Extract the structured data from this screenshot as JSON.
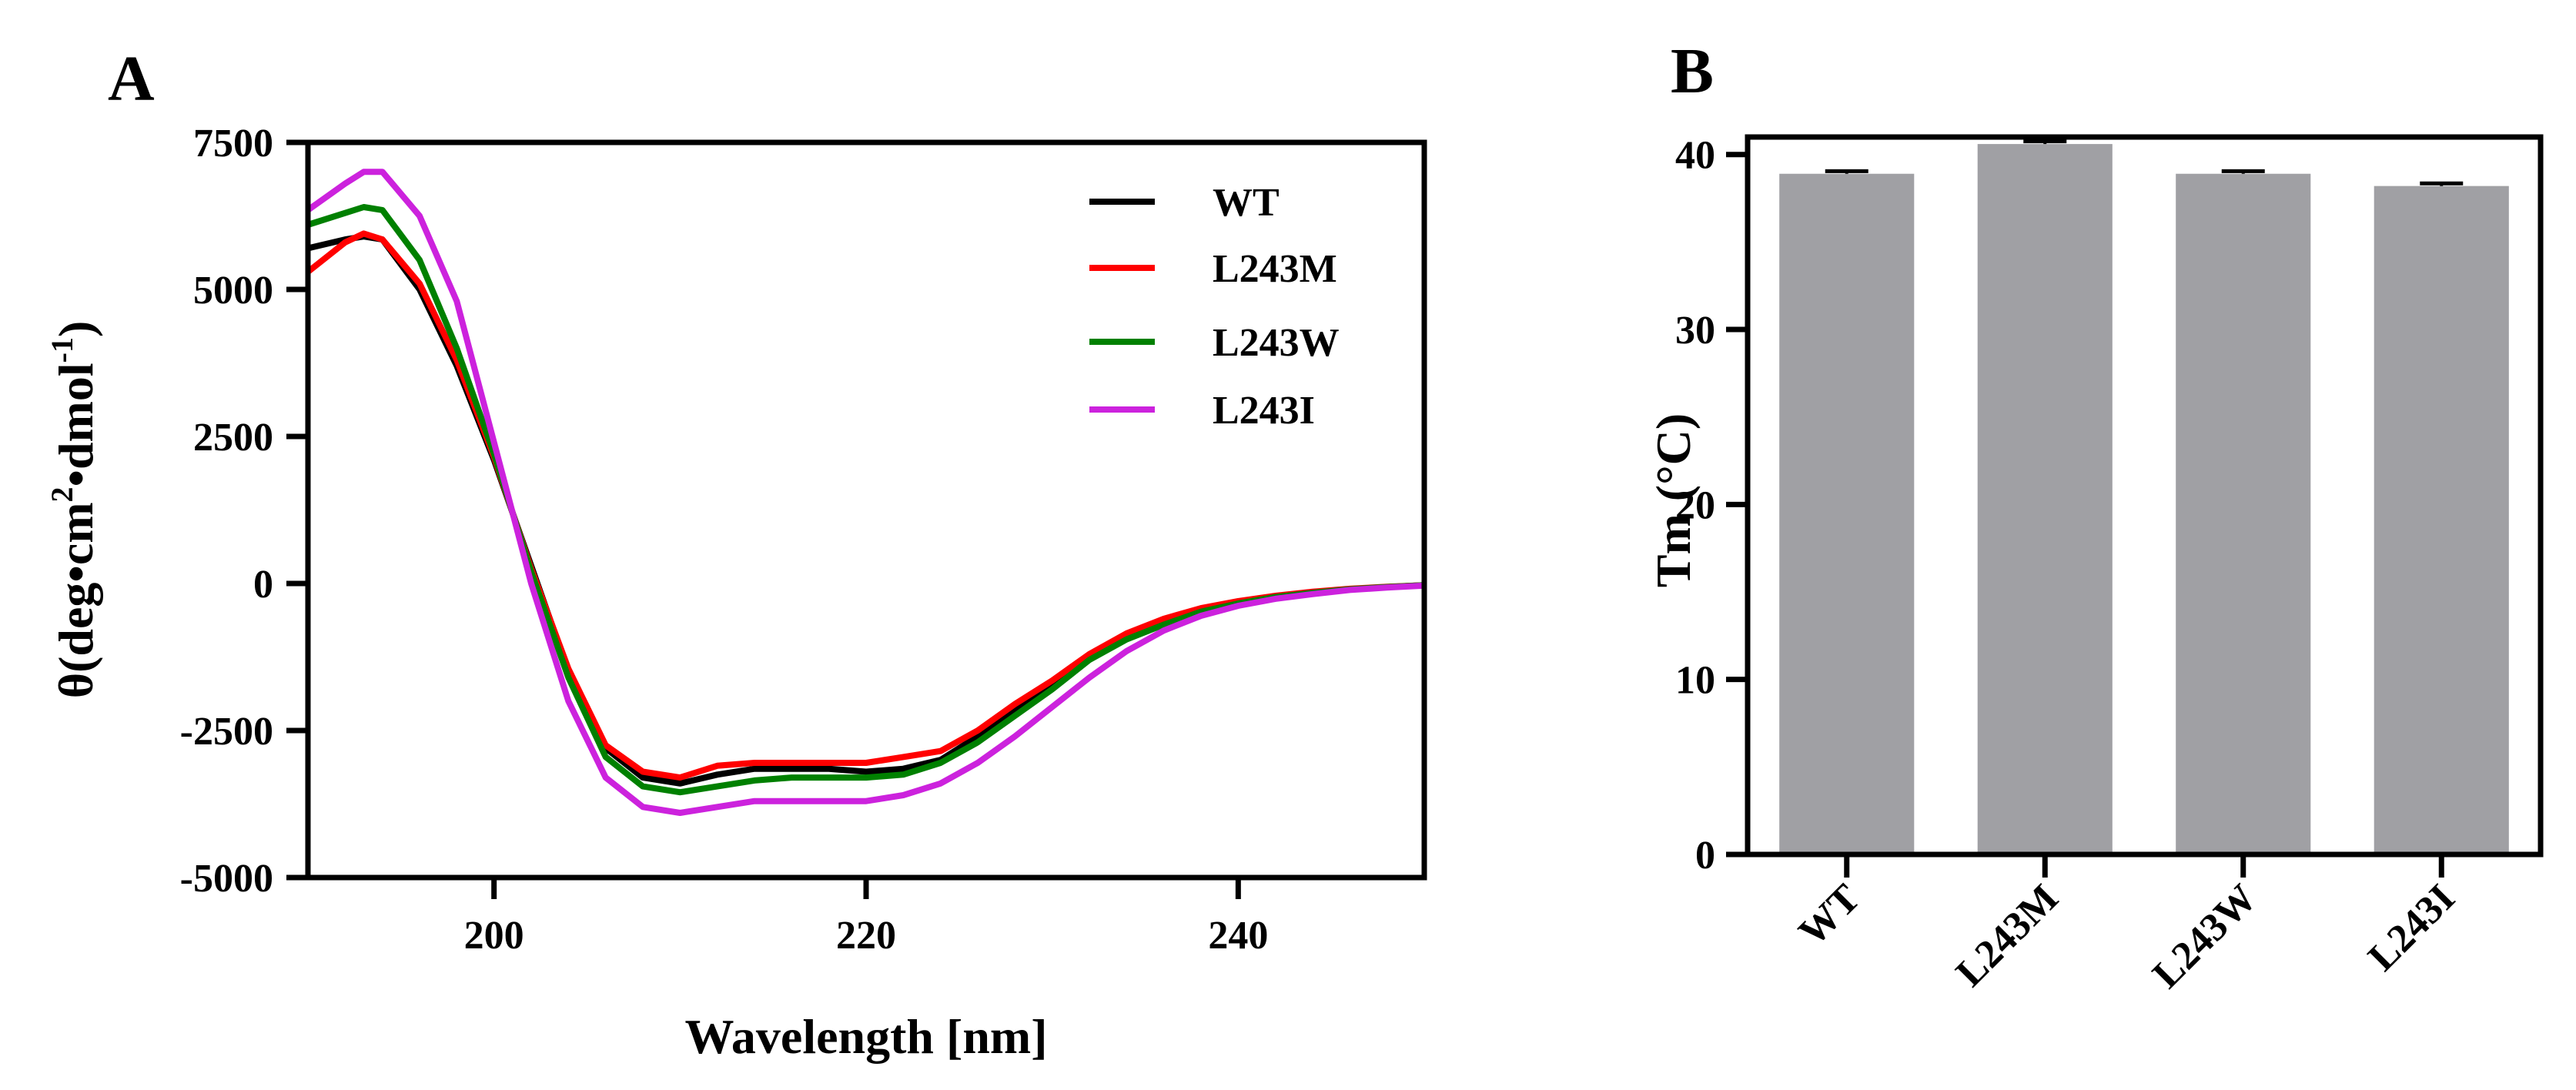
{
  "panels": {
    "a": {
      "letter": "A"
    },
    "b": {
      "letter": "B"
    }
  },
  "chart_data": [
    {
      "type": "line",
      "panel": "A",
      "xlabel": "Wavelength [nm]",
      "ylabel": {
        "main": "θ(deg•cm",
        "sup1": "2",
        "mid": "•dmol",
        "sup2": "-1",
        "end": ")"
      },
      "xlim": [
        190,
        250
      ],
      "ylim": [
        -5000,
        7500
      ],
      "xticks": [
        200,
        220,
        240
      ],
      "yticks": [
        -5000,
        -2500,
        0,
        2500,
        5000,
        7500
      ],
      "x": [
        190,
        192,
        193,
        194,
        196,
        198,
        200,
        202,
        204,
        206,
        208,
        210,
        212,
        214,
        216,
        218,
        220,
        222,
        224,
        226,
        228,
        230,
        232,
        234,
        236,
        238,
        240,
        242,
        244,
        246,
        248,
        250
      ],
      "series": [
        {
          "name": "WT",
          "color": "#000000",
          "values": [
            5700,
            5850,
            5900,
            5850,
            5000,
            3700,
            2100,
            300,
            -1500,
            -2800,
            -3300,
            -3400,
            -3250,
            -3150,
            -3150,
            -3150,
            -3200,
            -3150,
            -3000,
            -2600,
            -2150,
            -1700,
            -1250,
            -900,
            -650,
            -450,
            -320,
            -220,
            -150,
            -100,
            -60,
            -30
          ]
        },
        {
          "name": "L243M",
          "color": "#ff0000",
          "values": [
            5300,
            5800,
            5950,
            5850,
            5100,
            3800,
            2150,
            250,
            -1450,
            -2750,
            -3200,
            -3300,
            -3100,
            -3050,
            -3050,
            -3050,
            -3050,
            -2950,
            -2850,
            -2500,
            -2050,
            -1650,
            -1200,
            -850,
            -600,
            -420,
            -300,
            -210,
            -140,
            -90,
            -55,
            -30
          ]
        },
        {
          "name": "L243W",
          "color": "#008000",
          "values": [
            6100,
            6300,
            6400,
            6350,
            5500,
            4000,
            2200,
            200,
            -1600,
            -2950,
            -3450,
            -3550,
            -3450,
            -3350,
            -3300,
            -3300,
            -3300,
            -3250,
            -3050,
            -2700,
            -2250,
            -1800,
            -1300,
            -950,
            -700,
            -480,
            -340,
            -230,
            -160,
            -100,
            -60,
            -30
          ]
        },
        {
          "name": "L243I",
          "color": "#cc22dd",
          "values": [
            6350,
            6800,
            7000,
            7000,
            6250,
            4800,
            2400,
            0,
            -2000,
            -3300,
            -3800,
            -3900,
            -3800,
            -3700,
            -3700,
            -3700,
            -3700,
            -3600,
            -3400,
            -3050,
            -2600,
            -2100,
            -1600,
            -1150,
            -800,
            -550,
            -380,
            -260,
            -180,
            -110,
            -70,
            -35
          ]
        }
      ],
      "legend_position": "top-right"
    },
    {
      "type": "bar",
      "panel": "B",
      "title": "",
      "xlabel": "",
      "ylabel": "Tm (°C)",
      "ylim": [
        0,
        41
      ],
      "yticks": [
        0,
        10,
        20,
        30,
        40
      ],
      "categories": [
        "WT",
        "L243M",
        "L243W",
        "L243I"
      ],
      "values": [
        38.9,
        40.6,
        38.9,
        38.2
      ],
      "errors": [
        0.15,
        0.15,
        0.15,
        0.15
      ],
      "bar_color": "#a0a0a4"
    }
  ]
}
